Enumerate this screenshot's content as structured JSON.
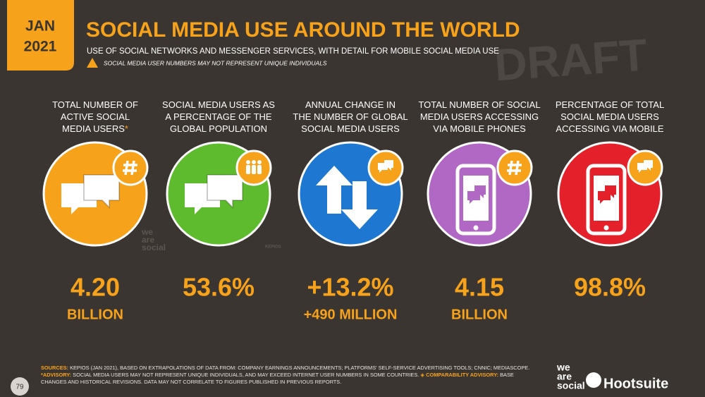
{
  "badge": {
    "month": "JAN",
    "year": "2021"
  },
  "title": "SOCIAL MEDIA USE AROUND THE WORLD",
  "subtitle": "USE OF SOCIAL NETWORKS AND MESSENGER SERVICES, WITH DETAIL FOR MOBILE SOCIAL MEDIA USE",
  "warning": "SOCIAL MEDIA USER NUMBERS MAY NOT REPRESENT UNIQUE INDIVIDUALS",
  "watermark": "DRAFT",
  "stats": [
    {
      "label_lines": [
        "TOTAL NUMBER OF",
        "ACTIVE SOCIAL",
        "MEDIA USERS"
      ],
      "asterisk": "*",
      "value": "4.20",
      "unit": "BILLION",
      "color": "#f7a21b",
      "source_mark": [
        "we",
        "are",
        "social"
      ]
    },
    {
      "label_lines": [
        "SOCIAL MEDIA USERS AS",
        "A PERCENTAGE OF THE",
        "GLOBAL POPULATION"
      ],
      "value": "53.6%",
      "color": "#5dbb2d",
      "source_mark": [
        "KEPIOS"
      ]
    },
    {
      "label_lines": [
        "ANNUAL CHANGE IN",
        "THE NUMBER OF GLOBAL",
        "SOCIAL MEDIA USERS"
      ],
      "value": "+13.2%",
      "unit": "+490 MILLION",
      "color": "#1e78d1"
    },
    {
      "label_lines": [
        "TOTAL NUMBER OF SOCIAL",
        "MEDIA USERS ACCESSING",
        "VIA MOBILE PHONES"
      ],
      "value": "4.15",
      "unit": "BILLION",
      "color": "#b068c4"
    },
    {
      "label_lines": [
        "PERCENTAGE OF TOTAL",
        "SOCIAL MEDIA USERS",
        "ACCESSING VIA MOBILE"
      ],
      "value": "98.8%",
      "color": "#e4202b"
    }
  ],
  "footer": {
    "line1": [
      {
        "bold": "SOURCES:"
      },
      {
        "text": " KEPIOS (JAN 2021), BASED ON EXTRAPOLATIONS OF DATA FROM: COMPANY EARNINGS ANNOUNCEMENTS; PLATFORMS' SELF-SERVICE ADVERTISING TOOLS; CNNIC; MEDIASCOPE."
      }
    ],
    "line2": [
      {
        "bold": "*ADVISORY:"
      },
      {
        "text": " SOCIAL MEDIA USERS MAY NOT REPRESENT UNIQUE INDIVIDUALS, AND MAY EXCEED INTERNET USER NUMBERS IN SOME COUNTRIES. "
      },
      {
        "bold": "◈ COMPARABILITY ADVISORY:"
      },
      {
        "text": " BASE"
      }
    ],
    "line3": [
      {
        "text": "CHANGES AND HISTORICAL REVISIONS. DATA MAY NOT CORRELATE TO FIGURES PUBLISHED IN PREVIOUS REPORTS."
      }
    ]
  },
  "page_number": "79",
  "logos": {
    "we_are_social": [
      "we",
      "are",
      "social"
    ],
    "hootsuite": "Hootsuite"
  }
}
